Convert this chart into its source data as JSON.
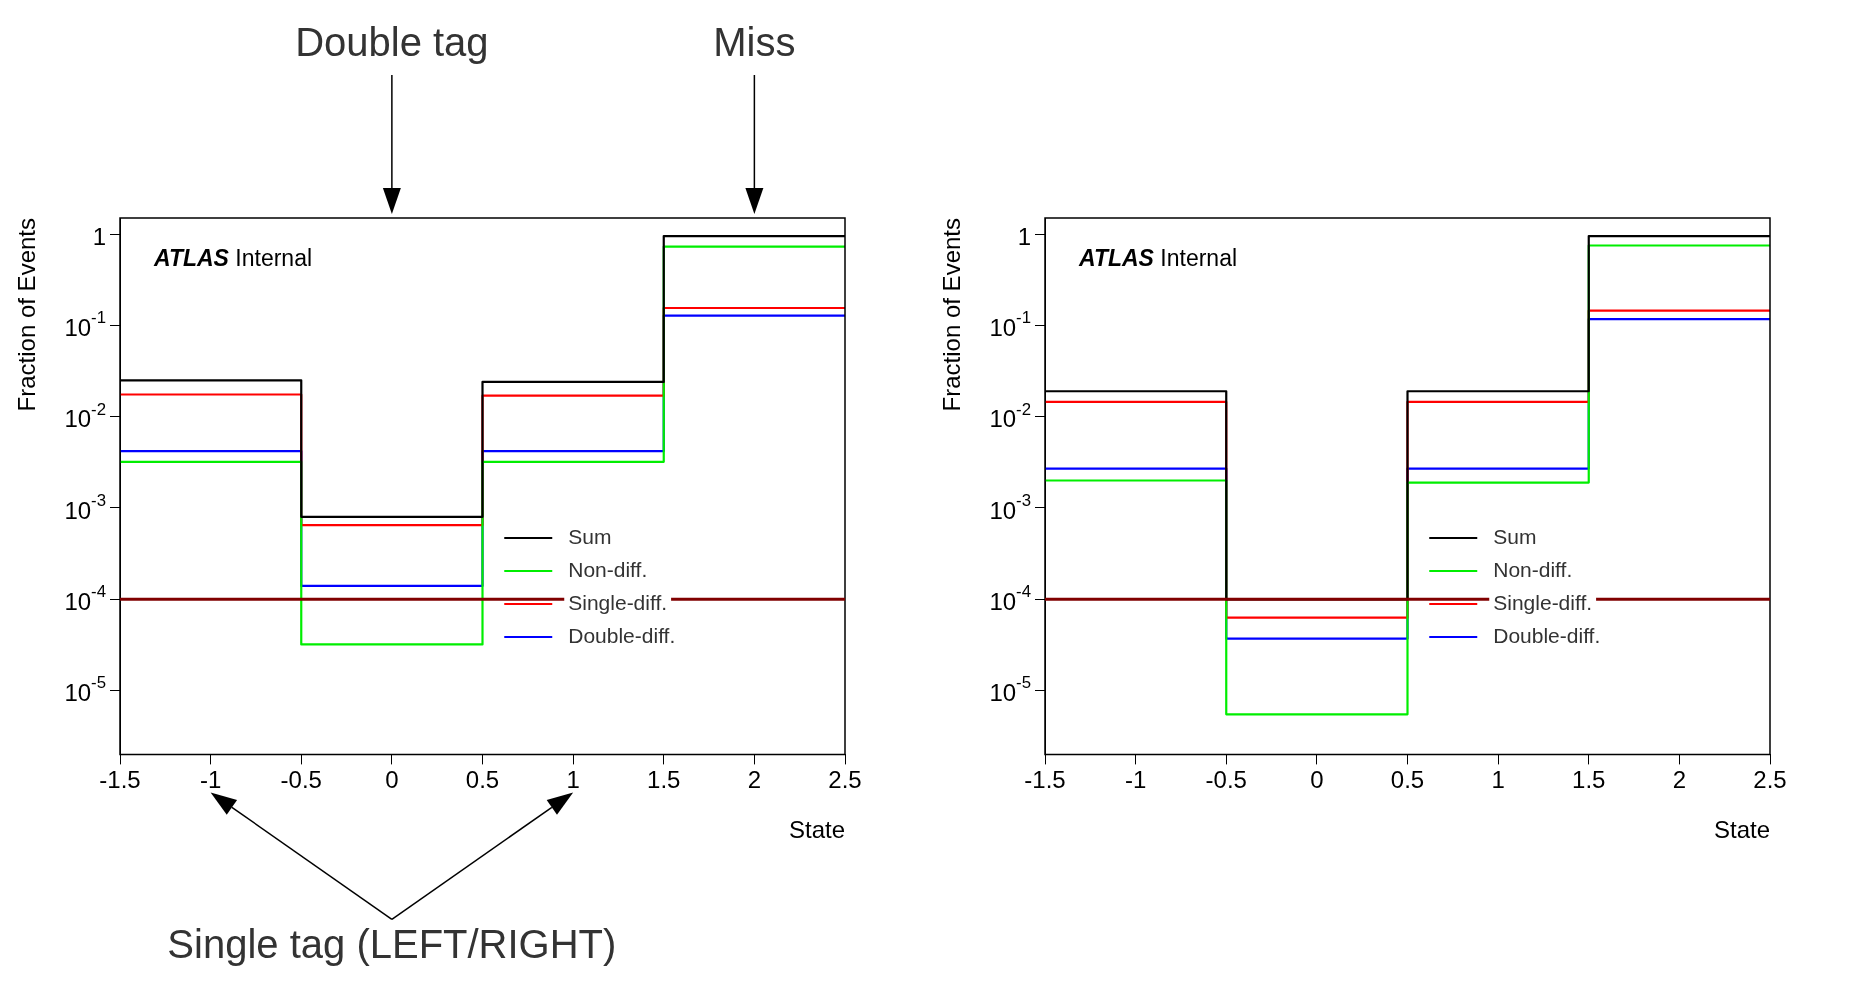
{
  "chart_data": [
    {
      "type": "histogram",
      "bins": [
        -1.5,
        -0.5,
        0.5,
        1.5,
        2.5
      ],
      "series": [
        {
          "name": "Sum",
          "color": "#000000",
          "values": [
            0.025,
            0.0008,
            0.024,
            0.95
          ]
        },
        {
          "name": "Non-diff.",
          "color": "#00ee00",
          "values": [
            0.0032,
            3.2e-05,
            0.0032,
            0.73
          ]
        },
        {
          "name": "Single-diff.",
          "color": "#ff0000",
          "values": [
            0.0175,
            0.00065,
            0.017,
            0.155
          ]
        },
        {
          "name": "Double-diff.",
          "color": "#0000ff",
          "values": [
            0.0042,
            0.00014,
            0.0042,
            0.128
          ]
        }
      ],
      "xlabel": "State",
      "ylabel": "Fraction of Events",
      "xlim": [
        -1.5,
        2.5
      ],
      "xticks": [
        -1.5,
        -1,
        -0.5,
        0,
        0.5,
        1,
        1.5,
        2,
        2.5
      ],
      "ylim": [
        2e-06,
        1.5
      ],
      "yticks": [
        {
          "value": 1e-05,
          "label": "10$^{-5}$"
        },
        {
          "value": 0.0001,
          "label": "10$^{-4}$"
        },
        {
          "value": 0.001,
          "label": "10$^{-3}$"
        },
        {
          "value": 0.01,
          "label": "10$^{-2}$"
        },
        {
          "value": 0.1,
          "label": "10$^{-1}$"
        },
        1
      ],
      "log": true,
      "legend": "bottom right",
      "grid": false,
      "ref_lines": [
        {
          "axis": "y",
          "value": 0.0001,
          "color": "#800000"
        }
      ],
      "annotations": [
        "ATLAS Internal",
        "Double tag",
        "Miss",
        "Single tag (LEFT/RIGHT)"
      ]
    },
    {
      "type": "histogram",
      "bins": [
        -1.5,
        -0.5,
        0.5,
        1.5,
        2.5
      ],
      "series": [
        {
          "name": "Sum",
          "color": "#000000",
          "values": [
            0.019,
            0.0001,
            0.019,
            0.95
          ]
        },
        {
          "name": "Non-diff.",
          "color": "#00ee00",
          "values": [
            0.002,
            5.5e-06,
            0.0019,
            0.75
          ]
        },
        {
          "name": "Single-diff.",
          "color": "#ff0000",
          "values": [
            0.0145,
            6.3e-05,
            0.0145,
            0.145
          ]
        },
        {
          "name": "Double-diff.",
          "color": "#0000ff",
          "values": [
            0.0027,
            3.7e-05,
            0.0027,
            0.117
          ]
        }
      ],
      "xlabel": "State",
      "ylabel": "Fraction of Events",
      "xlim": [
        -1.5,
        2.5
      ],
      "xticks": [
        -1.5,
        -1,
        -0.5,
        0,
        0.5,
        1,
        1.5,
        2,
        2.5
      ],
      "ylim": [
        2e-06,
        1.5
      ],
      "yticks": [
        {
          "value": 1e-05,
          "label": "10$^{-5}$"
        },
        {
          "value": 0.0001,
          "label": "10$^{-4}$"
        },
        {
          "value": 0.001,
          "label": "10$^{-3}$"
        },
        {
          "value": 0.01,
          "label": "10$^{-2}$"
        },
        {
          "value": 0.1,
          "label": "10$^{-1}$"
        },
        1
      ],
      "log": true,
      "legend": "bottom right",
      "grid": false,
      "ref_lines": [
        {
          "axis": "y",
          "value": 0.0001,
          "color": "#800000"
        }
      ],
      "annotations": [
        "ATLAS Internal"
      ]
    }
  ]
}
